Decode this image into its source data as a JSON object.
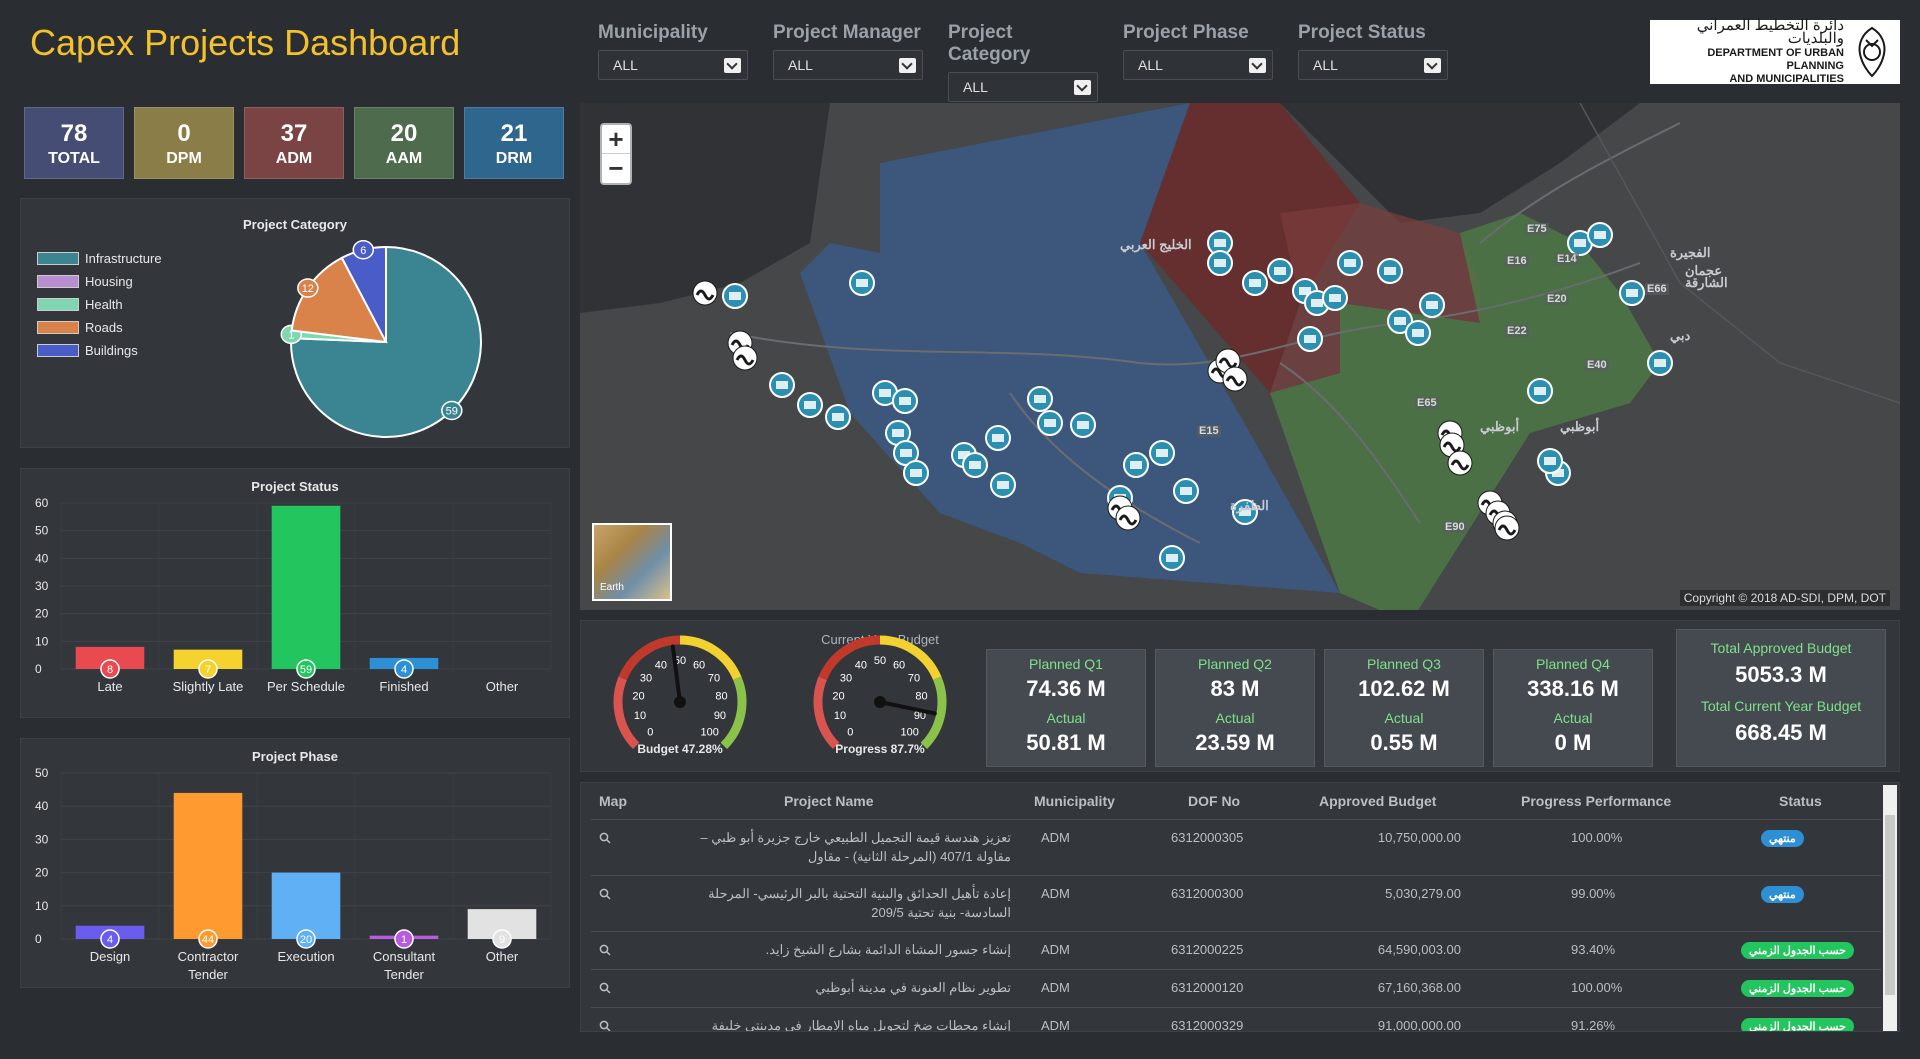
{
  "header": {
    "title": "Capex Projects Dashboard"
  },
  "filters": [
    {
      "label": "Municipality",
      "value": "ALL"
    },
    {
      "label": "Project Manager",
      "value": "ALL"
    },
    {
      "label": "Project Category",
      "value": "ALL"
    },
    {
      "label": "Project Phase",
      "value": "ALL"
    },
    {
      "label": "Project Status",
      "value": "ALL"
    }
  ],
  "logo": {
    "arabic": "دائرة التخطيط العمراني والبلديات",
    "line1": "DEPARTMENT OF URBAN PLANNING",
    "line2": "AND MUNICIPALITIES"
  },
  "kpis": [
    {
      "value": "78",
      "label": "TOTAL",
      "color": "#454d75"
    },
    {
      "value": "0",
      "label": "DPM",
      "color": "#8a7d48"
    },
    {
      "value": "37",
      "label": "ADM",
      "color": "#7a4444"
    },
    {
      "value": "20",
      "label": "AAM",
      "color": "#4e6b4e"
    },
    {
      "value": "21",
      "label": "DRM",
      "color": "#2f668e"
    }
  ],
  "category_chart": {
    "title": "Project Category",
    "legend": [
      {
        "name": "Infrastructure",
        "color": "#3a8591"
      },
      {
        "name": "Housing",
        "color": "#b88ed0"
      },
      {
        "name": "Health",
        "color": "#7fd6b0"
      },
      {
        "name": "Roads",
        "color": "#d9834a"
      },
      {
        "name": "Buildings",
        "color": "#4a5cc8"
      }
    ],
    "slices": [
      {
        "name": "Infrastructure",
        "value": 59,
        "label": "59",
        "color": "#3a8591"
      },
      {
        "name": "Health",
        "value": 1,
        "label": "1",
        "color": "#7fd6b0"
      },
      {
        "name": "Roads",
        "value": 12,
        "label": "12",
        "color": "#d9834a"
      },
      {
        "name": "Buildings",
        "value": 6,
        "label": "6",
        "color": "#4a5cc8"
      }
    ]
  },
  "status_chart": {
    "title": "Project Status",
    "ymax": 60,
    "ticks": [
      "0",
      "10",
      "20",
      "30",
      "40",
      "50",
      "60"
    ],
    "bars": [
      {
        "category": "Late",
        "value": 8,
        "label": "8",
        "color": "#e84a4f"
      },
      {
        "category": "Slightly Late",
        "value": 7,
        "label": "7",
        "color": "#f5d22e"
      },
      {
        "category": "Per Schedule",
        "value": 59,
        "label": "59",
        "color": "#22c55e"
      },
      {
        "category": "Finished",
        "value": 4,
        "label": "4",
        "color": "#2d8fd6"
      },
      {
        "category": "Other",
        "value": 0,
        "label": "",
        "color": "#cccccc"
      }
    ]
  },
  "phase_chart": {
    "title": "Project Phase",
    "ymax": 50,
    "ticks": [
      "0",
      "10",
      "20",
      "30",
      "40",
      "50"
    ],
    "bars": [
      {
        "category": "Design",
        "value": 4,
        "label": "4",
        "color": "#6b5cf0"
      },
      {
        "category": "Contractor Tender",
        "value": 44,
        "label": "44",
        "color": "#ff9a30"
      },
      {
        "category": "Execution",
        "value": 20,
        "label": "20",
        "color": "#5fb0f5"
      },
      {
        "category": "Consultant Tender",
        "value": 1,
        "label": "1",
        "color": "#b85be0"
      },
      {
        "category": "Other",
        "value": 9,
        "label": "9",
        "color": "#e2e2e2"
      }
    ]
  },
  "map": {
    "copyright": "Copyright © 2018 AD-SDI, DPM, DOT",
    "earth_label": "Earth",
    "zoom_in": "+",
    "zoom_out": "−",
    "place_labels": [
      {
        "text": "الظفرة"
      },
      {
        "text": "أبوظبي"
      },
      {
        "text": "أبوظبي"
      },
      {
        "text": "عجمان"
      },
      {
        "text": "الشارقة"
      },
      {
        "text": "دبي"
      },
      {
        "text": "الفجيرة"
      },
      {
        "text": "الخليج العربي"
      }
    ],
    "road_labels": [
      "E75",
      "E16",
      "E14",
      "E20",
      "E66",
      "E22",
      "E40",
      "E65",
      "E15",
      "E90"
    ]
  },
  "gauges": [
    {
      "label": "Budget 47.28%",
      "value": 47.28,
      "ticks": [
        "0",
        "10",
        "20",
        "30",
        "40",
        "50",
        "60",
        "70",
        "80",
        "90",
        "100"
      ]
    },
    {
      "label": "Progress 87.7%",
      "value": 87.7,
      "ticks": [
        "0",
        "10",
        "20",
        "30",
        "40",
        "50",
        "60",
        "70",
        "80",
        "90",
        "100"
      ]
    }
  ],
  "budget": {
    "title": "Current Year Budget",
    "quarters": [
      {
        "label": "Planned Q1",
        "planned": "74.36 M",
        "actual_label": "Actual",
        "actual": "50.81 M"
      },
      {
        "label": "Planned Q2",
        "planned": "83 M",
        "actual_label": "Actual",
        "actual": "23.59 M"
      },
      {
        "label": "Planned Q3",
        "planned": "102.62 M",
        "actual_label": "Actual",
        "actual": "0.55 M"
      },
      {
        "label": "Planned Q4",
        "planned": "338.16 M",
        "actual_label": "Actual",
        "actual": "0 M"
      }
    ],
    "total_approved_label": "Total Approved Budget",
    "total_approved": "5053.3 M",
    "total_current_label": "Total Current Year Budget",
    "total_current": "668.45 M"
  },
  "table": {
    "columns": [
      "Map",
      "Project Name",
      "Municipality",
      "DOF No",
      "Approved Budget",
      "Progress Performance",
      "Status"
    ],
    "rows": [
      {
        "name": "تعزيز هندسة قيمة التجميل الطبيعي خارج جزيرة أبو ظبي – مقاولة 407/1 (المرحلة الثانية) - مقاول",
        "municipality": "ADM",
        "dof": "6312000305",
        "budget": "10,750,000.00",
        "progress": "100.00%",
        "status": "منتهي",
        "status_color": "#2d8fd6"
      },
      {
        "name": "إعادة تأهيل الحدائق والبنية التحتية بالبر الرئيسي- المرحلة السادسة- بنية تحتية 209/5",
        "municipality": "ADM",
        "dof": "6312000300",
        "budget": "5,030,279.00",
        "progress": "99.00%",
        "status": "منتهي",
        "status_color": "#2d8fd6"
      },
      {
        "name": "إنشاء جسور المشاة الدائمة بشارع الشيخ زايد.",
        "municipality": "ADM",
        "dof": "6312000225",
        "budget": "64,590,003.00",
        "progress": "93.40%",
        "status": "حسب الجدول الزمني",
        "status_color": "#22c55e"
      },
      {
        "name": "تطوير نظام العنونة في مدينة أبوظبي",
        "municipality": "ADM",
        "dof": "6312000120",
        "budget": "67,160,368.00",
        "progress": "100.00%",
        "status": "حسب الجدول الزمني",
        "status_color": "#22c55e"
      },
      {
        "name": "إنشاء محطات ضخ لتحويل مياه الامطار في مدينتي خليفة وشخبوط – عقد",
        "municipality": "ADM",
        "dof": "6312000329",
        "budget": "91,000,000.00",
        "progress": "91.26%",
        "status": "حسب الجدول الزمني",
        "status_color": "#22c55e"
      }
    ]
  }
}
